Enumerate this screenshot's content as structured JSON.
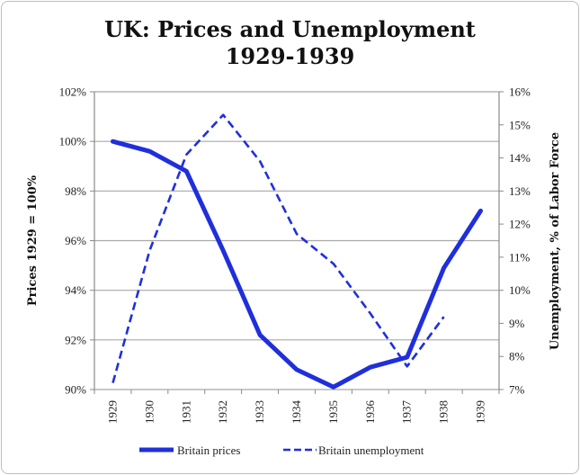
{
  "chart_data": {
    "type": "line",
    "title": "UK: Prices and Unemployment",
    "subtitle": "1929-1939",
    "categories": [
      "1929",
      "1930",
      "1931",
      "1932",
      "1933",
      "1934",
      "1935",
      "1936",
      "1937",
      "1938",
      "1939"
    ],
    "y_left": {
      "label": "Prices 1929 = 100%",
      "ylim": [
        90,
        102
      ],
      "ticks": [
        90,
        92,
        94,
        96,
        98,
        100,
        102
      ],
      "tick_labels": [
        "90%",
        "92%",
        "94%",
        "96%",
        "98%",
        "100%",
        "102%"
      ]
    },
    "y_right": {
      "label": "Unemployment, % of Labor Force",
      "ylim": [
        7,
        16
      ],
      "ticks": [
        7,
        8,
        9,
        10,
        11,
        12,
        13,
        14,
        15,
        16
      ],
      "tick_labels": [
        "7%",
        "8%",
        "9%",
        "10%",
        "11%",
        "12%",
        "13%",
        "14%",
        "15%",
        "16%"
      ]
    },
    "series": [
      {
        "name": "Britain prices",
        "axis": "left",
        "style": "solid",
        "values": [
          100.0,
          99.6,
          98.8,
          95.6,
          92.2,
          90.8,
          90.1,
          90.9,
          91.3,
          94.9,
          97.2
        ]
      },
      {
        "name": "Britain unemployment",
        "axis": "right",
        "style": "dashed",
        "values": [
          7.2,
          11.2,
          14.1,
          15.3,
          13.9,
          11.7,
          10.8,
          9.3,
          7.7,
          9.2,
          null
        ]
      }
    ],
    "grid": true,
    "legend_position": "bottom",
    "color": "#1f2fdc"
  }
}
